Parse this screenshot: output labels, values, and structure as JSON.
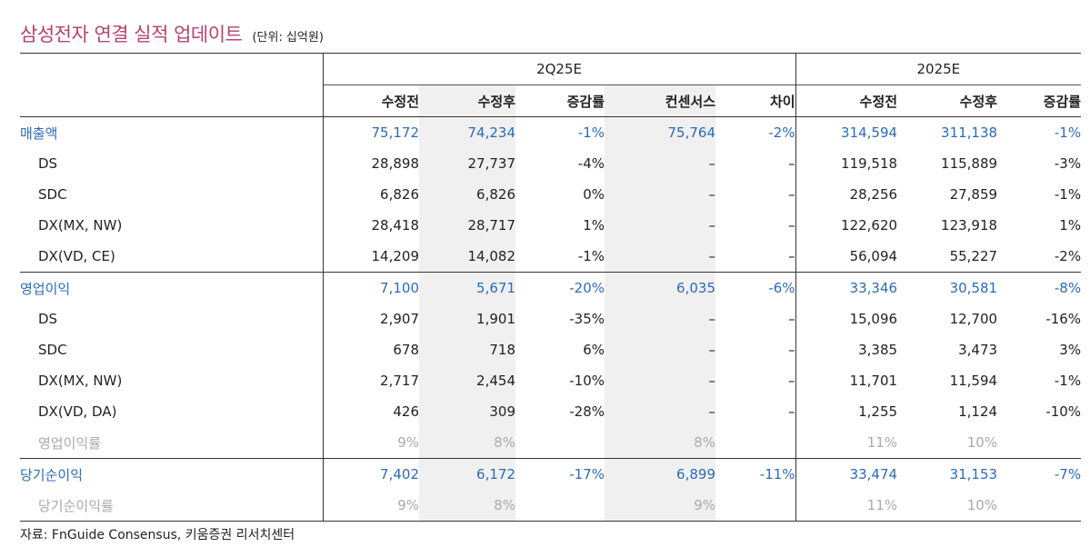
{
  "title": "삼성전자 연결 실적 업데이트",
  "unit": "(단위: 십억원)",
  "groups": {
    "q": "2Q25E",
    "y": "2025E"
  },
  "headers": [
    "수정전",
    "수정후",
    "증감률",
    "컨센서스",
    "차이",
    "수정전",
    "수정후",
    "증감률"
  ],
  "rows": [
    {
      "label": "매출액",
      "cells": [
        "75,172",
        "74,234",
        "-1%",
        "75,764",
        "-2%",
        "314,594",
        "311,138",
        "-1%"
      ]
    },
    {
      "label": "DS",
      "cells": [
        "28,898",
        "27,737",
        "-4%",
        "–",
        "–",
        "119,518",
        "115,889",
        "-3%"
      ]
    },
    {
      "label": "SDC",
      "cells": [
        "6,826",
        "6,826",
        "0%",
        "–",
        "–",
        "28,256",
        "27,859",
        "-1%"
      ]
    },
    {
      "label": "DX(MX, NW)",
      "cells": [
        "28,418",
        "28,717",
        "1%",
        "–",
        "–",
        "122,620",
        "123,918",
        "1%"
      ]
    },
    {
      "label": "DX(VD, CE)",
      "cells": [
        "14,209",
        "14,082",
        "-1%",
        "–",
        "–",
        "56,094",
        "55,227",
        "-2%"
      ]
    },
    {
      "label": "영업이익",
      "cells": [
        "7,100",
        "5,671",
        "-20%",
        "6,035",
        "-6%",
        "33,346",
        "30,581",
        "-8%"
      ]
    },
    {
      "label": "DS",
      "cells": [
        "2,907",
        "1,901",
        "-35%",
        "–",
        "–",
        "15,096",
        "12,700",
        "-16%"
      ]
    },
    {
      "label": "SDC",
      "cells": [
        "678",
        "718",
        "6%",
        "–",
        "–",
        "3,385",
        "3,473",
        "3%"
      ]
    },
    {
      "label": "DX(MX, NW)",
      "cells": [
        "2,717",
        "2,454",
        "-10%",
        "–",
        "–",
        "11,701",
        "11,594",
        "-1%"
      ]
    },
    {
      "label": "DX(VD, DA)",
      "cells": [
        "426",
        "309",
        "-28%",
        "–",
        "–",
        "1,255",
        "1,124",
        "-10%"
      ]
    },
    {
      "label": "영업이익률",
      "cells": [
        "9%",
        "8%",
        "",
        "8%",
        "",
        "11%",
        "10%",
        ""
      ]
    },
    {
      "label": "당기순이익",
      "cells": [
        "7,402",
        "6,172",
        "-17%",
        "6,899",
        "-11%",
        "33,474",
        "31,153",
        "-7%"
      ]
    },
    {
      "label": "당기순이익률",
      "cells": [
        "9%",
        "8%",
        "",
        "9%",
        "",
        "11%",
        "10%",
        ""
      ]
    }
  ],
  "source": "자료: FnGuide Consensus, 키움증권 리서치센터",
  "colors": {
    "title": "#b5436e",
    "highlight": "#2d6bb4",
    "muted": "#aaaaaa",
    "shade": "#f0f0f0"
  }
}
